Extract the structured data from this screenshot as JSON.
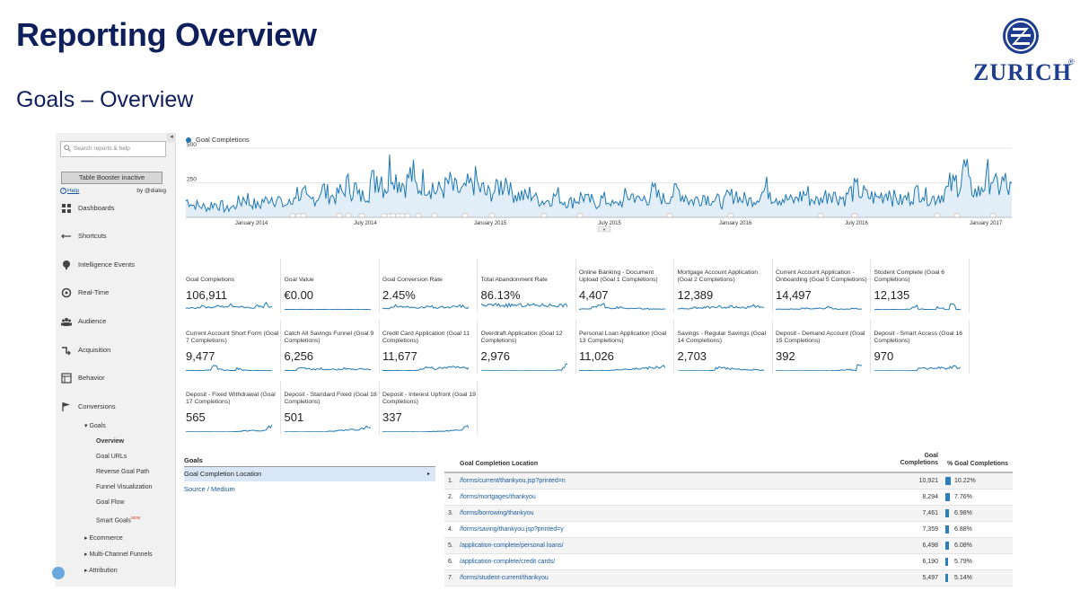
{
  "slide": {
    "title": "Reporting Overview",
    "subtitle": "Goals – Overview",
    "logo_text": "ZURICH",
    "logo_mark": "®"
  },
  "sidebar": {
    "collapse": "◂",
    "search_placeholder": "Search reports & help",
    "table_booster": "Table Booster inactive",
    "help": "Help",
    "by": "by @dialog",
    "nav": [
      {
        "label": "Dashboards",
        "icon": "dashboards-icon"
      },
      {
        "label": "Shortcuts",
        "icon": "shortcuts-icon"
      },
      {
        "label": "Intelligence Events",
        "icon": "intelligence-icon"
      },
      {
        "label": "Real-Time",
        "icon": "realtime-icon"
      },
      {
        "label": "Audience",
        "icon": "audience-icon"
      },
      {
        "label": "Acquisition",
        "icon": "acquisition-icon"
      },
      {
        "label": "Behavior",
        "icon": "behavior-icon"
      },
      {
        "label": "Conversions",
        "icon": "flag-icon"
      }
    ],
    "goals_label": "▾ Goals",
    "goals_items": [
      "Overview",
      "Goal URLs",
      "Reverse Goal Path",
      "Funnel Visualization",
      "Goal Flow",
      "Smart Goals"
    ],
    "new_badge": "NEW",
    "more": [
      "▸ Ecommerce",
      "▸ Multi-Channel Funnels",
      "▸ Attribution"
    ]
  },
  "chart_data": {
    "type": "line",
    "title": "",
    "series": [
      {
        "name": "Goal Completions"
      }
    ],
    "y_ticks": [
      "500",
      "250"
    ],
    "ylim": [
      0,
      500
    ],
    "x_labels": [
      "January 2014",
      "July 2014",
      "January 2015",
      "July 2015",
      "January 2016",
      "July 2016",
      "January 2017"
    ],
    "y_values_weekly": [
      120,
      90,
      80,
      70,
      95,
      85,
      60,
      75,
      110,
      140,
      100,
      85,
      120,
      150,
      130,
      90,
      100,
      180,
      160,
      120,
      140,
      200,
      170,
      150,
      180,
      230,
      210,
      150,
      190,
      260,
      300,
      230,
      360,
      280,
      250,
      300,
      220,
      260,
      230,
      190,
      210,
      240,
      200,
      180,
      220,
      260,
      200,
      170,
      190,
      230,
      280,
      180,
      160,
      150,
      170,
      130,
      120,
      140,
      160,
      120,
      110,
      130,
      150,
      120,
      100,
      130,
      120,
      90,
      110,
      150,
      160,
      120,
      140,
      180,
      150,
      130,
      170,
      190,
      160,
      120,
      130,
      160,
      140,
      120,
      110,
      150,
      170,
      130,
      120,
      140,
      180,
      210,
      160,
      140,
      130,
      120,
      150,
      170,
      130,
      120,
      160,
      190,
      150,
      140,
      180,
      200,
      170,
      150,
      140,
      160,
      190,
      140,
      120,
      140,
      170,
      200,
      150,
      140,
      160,
      190,
      230,
      260,
      340,
      210,
      180,
      240,
      300,
      220,
      250,
      200
    ],
    "legend": "top-left"
  },
  "scorecards": [
    {
      "label": "Goal Completions",
      "value": "106,911"
    },
    {
      "label": "Goal Value",
      "value": "€0.00"
    },
    {
      "label": "Goal Conversion Rate",
      "value": "2.45%"
    },
    {
      "label": "Total Abandonment Rate",
      "value": "86.13%"
    },
    {
      "label": "Online Banking - Document Upload (Goal 1 Completions)",
      "value": "4,407"
    },
    {
      "label": "Mortgage Account Application (Goal 2 Completions)",
      "value": "12,389"
    },
    {
      "label": "Current Account Application - Onboarding (Goal 5 Completions)",
      "value": "14,497"
    },
    {
      "label": "Student Complete (Goal 6 Completions)",
      "value": "12,135"
    },
    {
      "label": "Current Account Short Form (Goal 7 Completions)",
      "value": "9,477"
    },
    {
      "label": "Catch All Savings Funnel (Goal 9 Completions)",
      "value": "6,256"
    },
    {
      "label": "Credit Card Application (Goal 11 Completions)",
      "value": "11,677"
    },
    {
      "label": "Overdraft Application (Goal 12 Completions)",
      "value": "2,976"
    },
    {
      "label": "Personal Loan Application (Goal 13 Completions)",
      "value": "11,026"
    },
    {
      "label": "Savings - Regular Savings (Goal 14 Completions)",
      "value": "2,703"
    },
    {
      "label": "Deposit - Demand Account (Goal 15 Completions)",
      "value": "392"
    },
    {
      "label": "Deposit - Smart Access (Goal 16 Completions)",
      "value": "970"
    },
    {
      "label": "Deposit - Fixed Withdrawal (Goal 17 Completions)",
      "value": "565"
    },
    {
      "label": "Deposit - Standard Fixed (Goal 18 Completions)",
      "value": "501"
    },
    {
      "label": "Deposit - Interest Upfront (Goal 19 Completions)",
      "value": "337"
    }
  ],
  "goals_panel": {
    "header": "Goals",
    "selected": "Goal Completion Location",
    "arrow": "▸",
    "other": "Source / Medium"
  },
  "table": {
    "col1": "Goal Completion Location",
    "col2": "Goal Completions",
    "col3": "% Goal Completions",
    "rows": [
      {
        "idx": "1.",
        "loc": "/forms/current/thankyou.jsp?printed=n",
        "num": "10,921",
        "pct": "10.22%",
        "share": 10.22
      },
      {
        "idx": "2.",
        "loc": "/forms/mortgages/thankyou",
        "num": "8,294",
        "pct": "7.76%",
        "share": 7.76
      },
      {
        "idx": "3.",
        "loc": "/forms/borrowing/thankyou",
        "num": "7,461",
        "pct": "6.98%",
        "share": 6.98
      },
      {
        "idx": "4.",
        "loc": "/forms/saving/thankyou.jsp?printed=y",
        "num": "7,359",
        "pct": "6.88%",
        "share": 6.88
      },
      {
        "idx": "5.",
        "loc": "/application-complete/personal loans/",
        "num": "6,498",
        "pct": "6.08%",
        "share": 6.08
      },
      {
        "idx": "6.",
        "loc": "/application-complete/credit cards/",
        "num": "6,190",
        "pct": "5.79%",
        "share": 5.79
      },
      {
        "idx": "7.",
        "loc": "/forms/student-current/thankyou",
        "num": "5,497",
        "pct": "5.14%",
        "share": 5.14
      }
    ]
  },
  "colors": {
    "title": "#0f1f5c",
    "brand": "#1e3d8f",
    "series": "#1f78b4",
    "link": "#1a5aa0"
  }
}
